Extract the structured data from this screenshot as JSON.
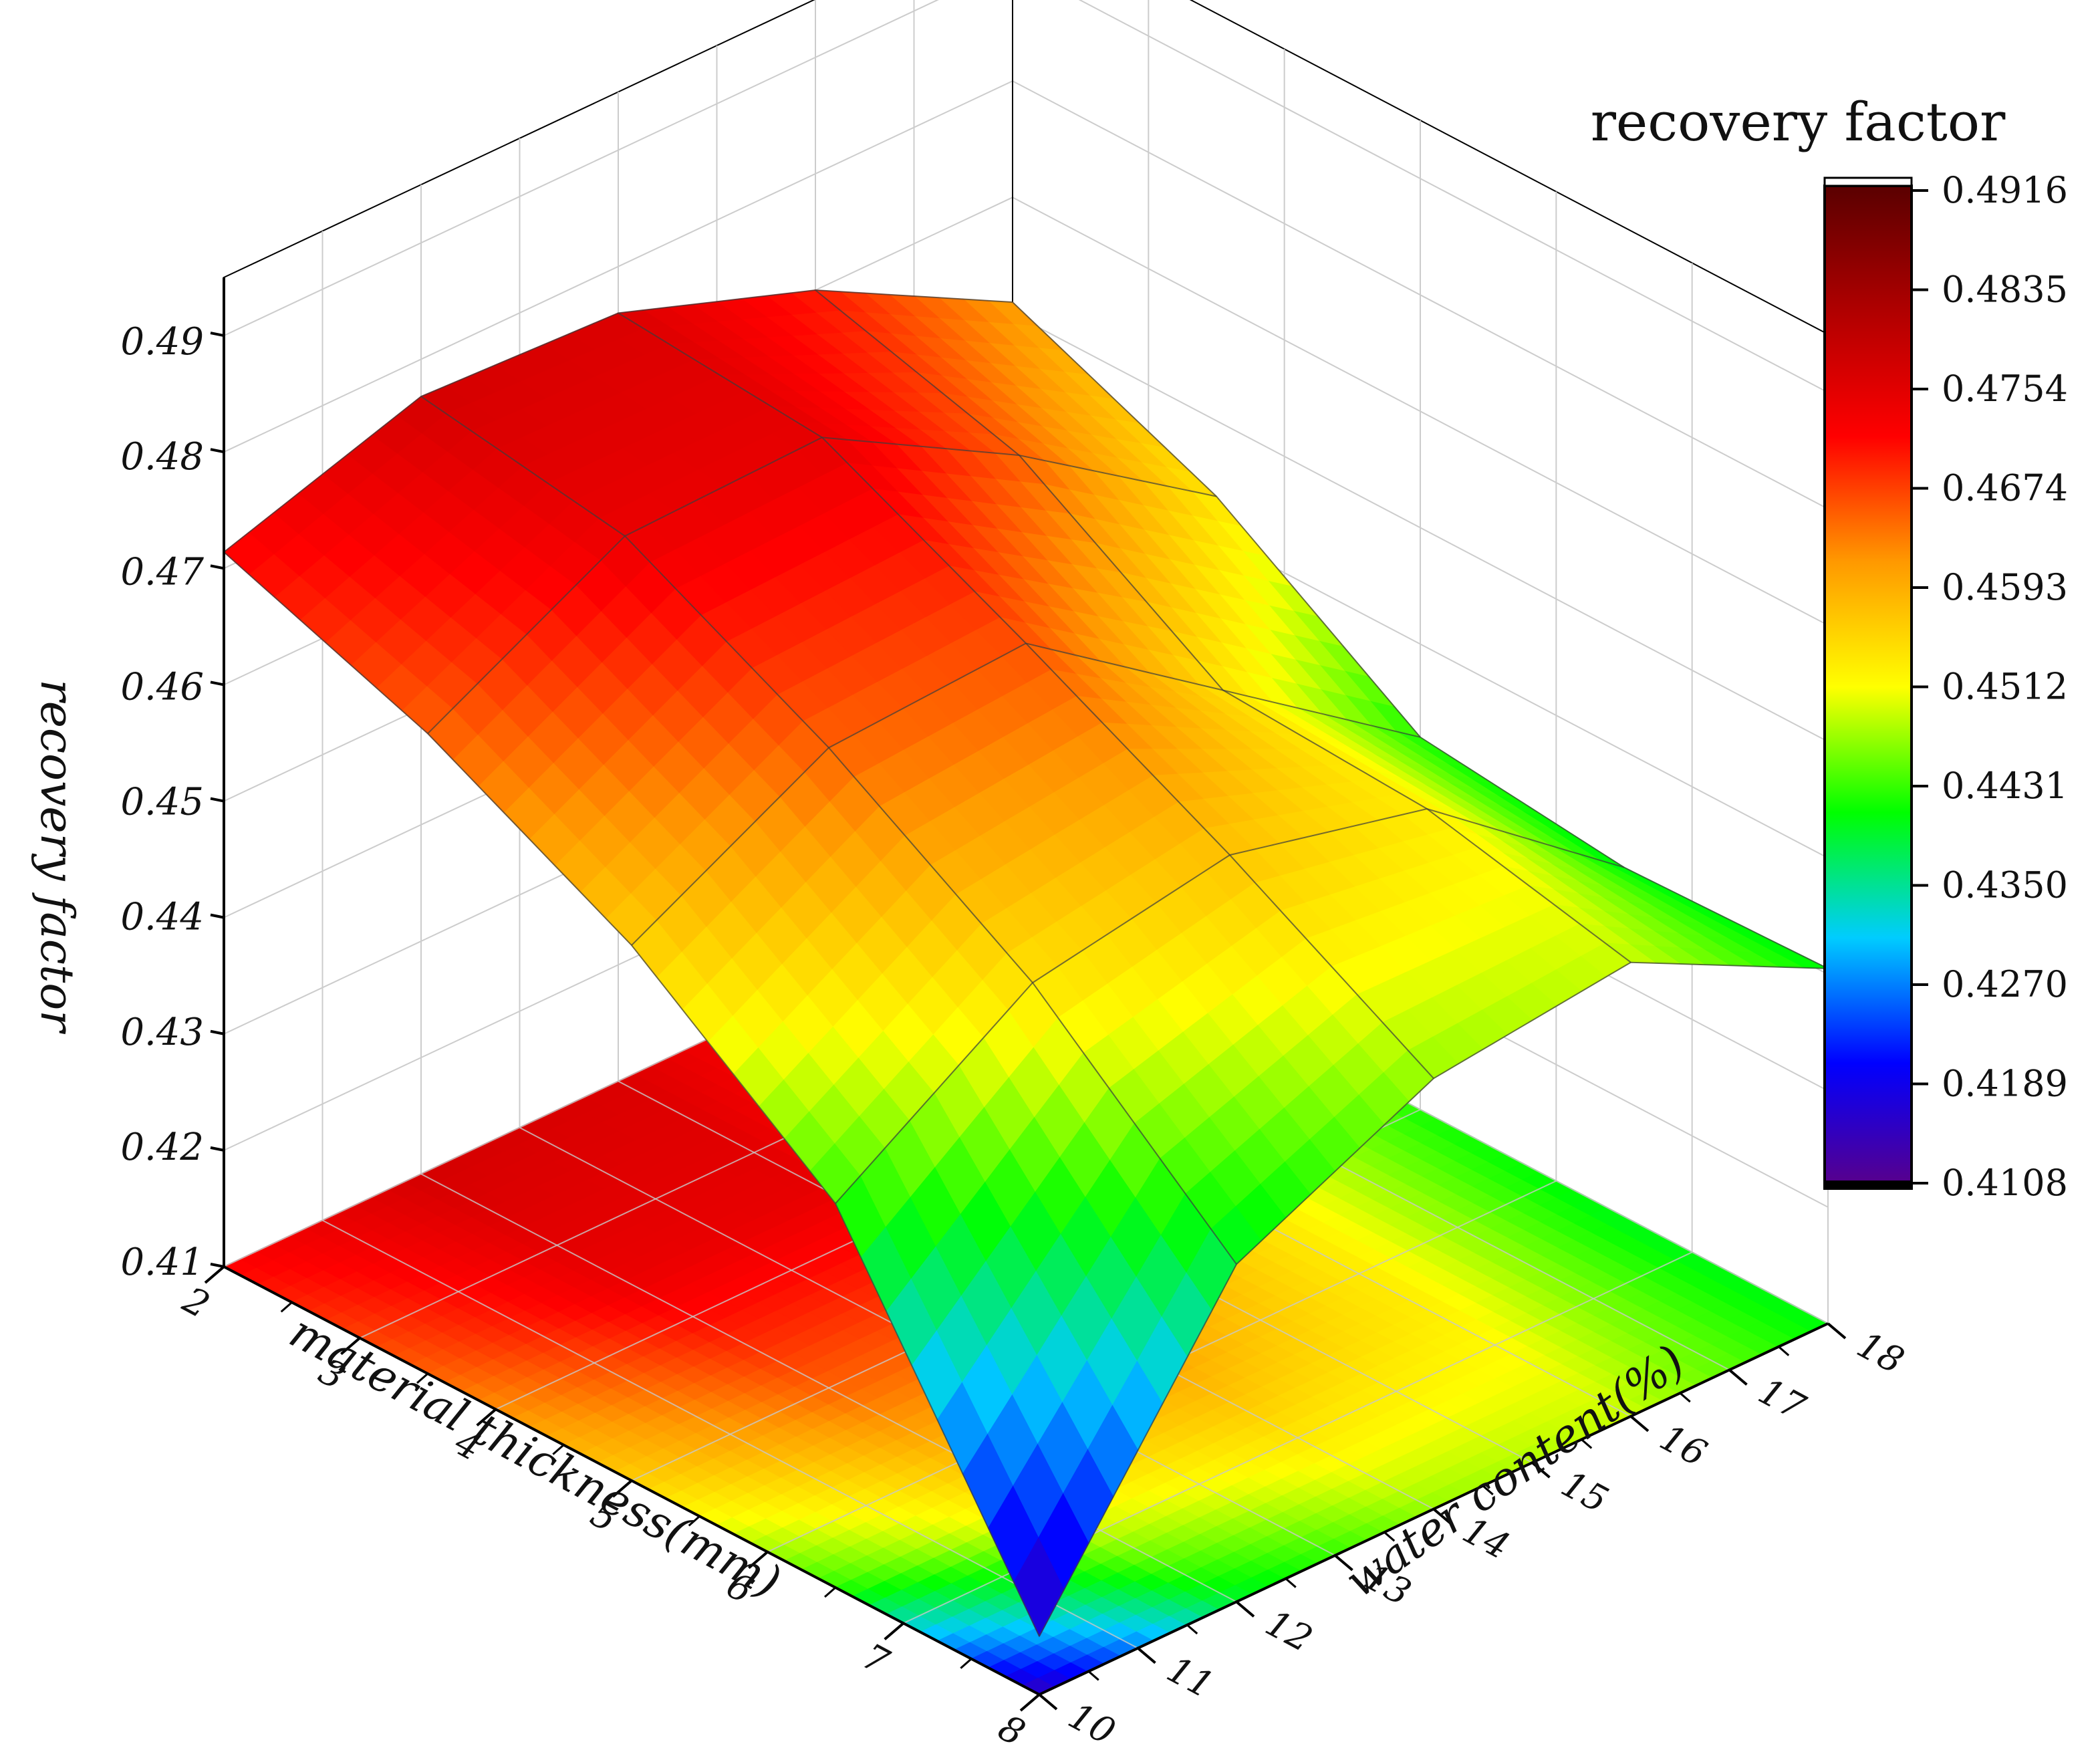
{
  "chart_data": {
    "type": "surface3d",
    "title": "",
    "xlabel": "material thickness(mm)",
    "ylabel": "water content(%)",
    "zlabel": "recovery factor",
    "xlim": [
      2,
      8
    ],
    "ylim": [
      10,
      18
    ],
    "zlim": [
      0.41,
      0.495
    ],
    "x_ticks": [
      "2",
      "3",
      "4",
      "5",
      "6",
      "7",
      "8"
    ],
    "y_ticks": [
      "10",
      "11",
      "12",
      "13",
      "14",
      "15",
      "16",
      "17",
      "18"
    ],
    "z_ticks": [
      "0.41",
      "0.42",
      "0.43",
      "0.44",
      "0.45",
      "0.46",
      "0.47",
      "0.48",
      "0.49"
    ],
    "x": [
      2,
      3.5,
      5,
      6.5,
      8
    ],
    "y": [
      10,
      12,
      14,
      16,
      18
    ],
    "z": [
      [
        0.4714,
        0.4768,
        0.476,
        0.47,
        0.461
      ],
      [
        0.465,
        0.474,
        0.4745,
        0.465,
        0.4535
      ],
      [
        0.456,
        0.465,
        0.466,
        0.454,
        0.442
      ],
      [
        0.443,
        0.454,
        0.457,
        0.453,
        0.44
      ],
      [
        0.415,
        0.439,
        0.447,
        0.449,
        0.4405
      ]
    ],
    "colorbar": {
      "title": "recovery factor",
      "min": 0.4108,
      "max": 0.4916,
      "ticks": [
        "0.4108",
        "0.4189",
        "0.4270",
        "0.4350",
        "0.4431",
        "0.4512",
        "0.4593",
        "0.4674",
        "0.4754",
        "0.4835",
        "0.4916"
      ],
      "colormap": [
        "#5b0088",
        "#0000ff",
        "#00ccff",
        "#00ff00",
        "#ffff00",
        "#ff9900",
        "#ff0000",
        "#b00000",
        "#5a0000"
      ]
    },
    "floor_contour_map": true,
    "grid": true
  }
}
